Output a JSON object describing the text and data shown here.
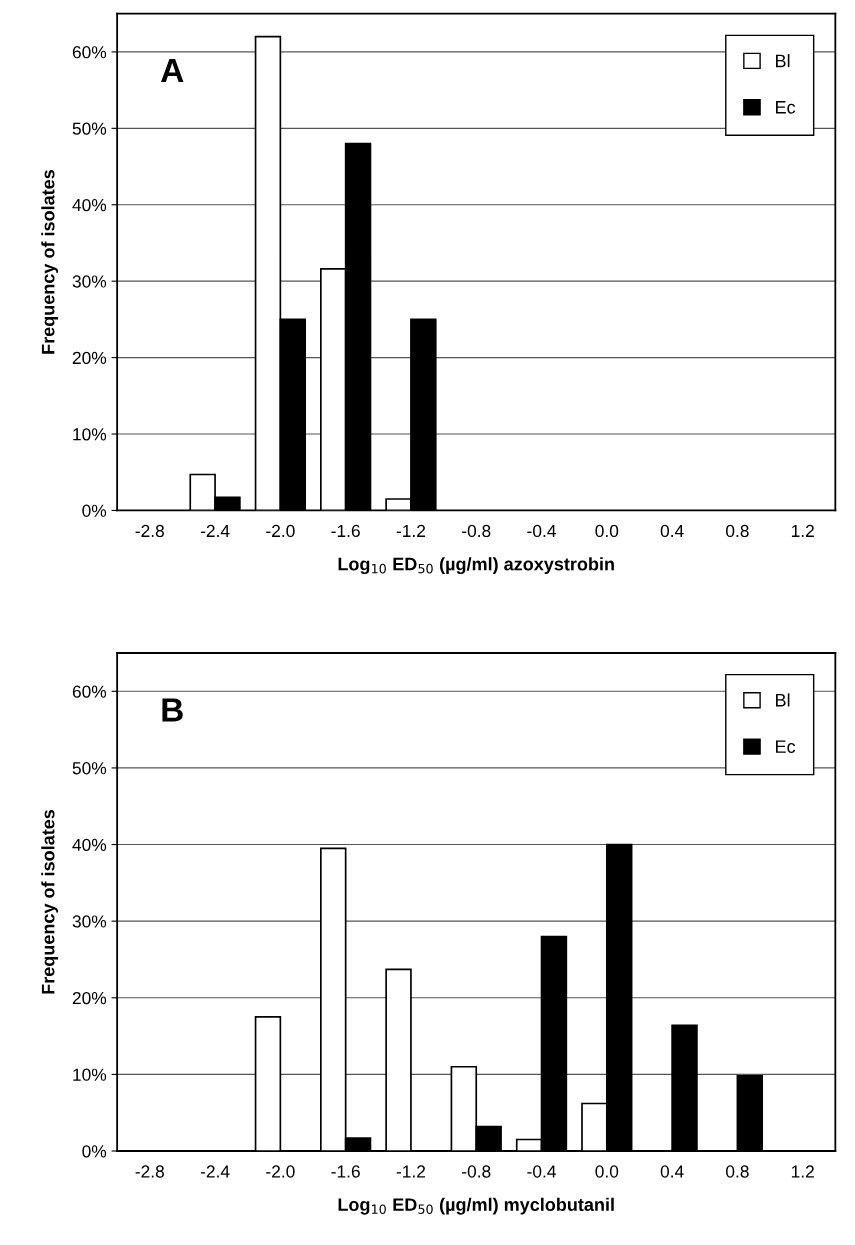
{
  "chart_data": [
    {
      "type": "bar",
      "categories": [
        "-2.8",
        "-2.4",
        "-2.0",
        "-1.6",
        "-1.2",
        "-0.8",
        "-0.4",
        "0.0",
        "0.4",
        "0.8",
        "1.2"
      ],
      "series": [
        {
          "name": "Bl",
          "color": "#ffffff",
          "values": [
            null,
            4.7,
            62,
            31.6,
            1.5,
            null,
            null,
            null,
            null,
            null,
            null
          ]
        },
        {
          "name": "Ec",
          "color": "#000000",
          "values": [
            null,
            1.7,
            25,
            48,
            25,
            null,
            null,
            null,
            null,
            null,
            null
          ]
        }
      ],
      "xlabel": "Log$_{10}$ ED$_{50}$ (µg/ml) azoxystrobin",
      "ylabel": "Frequency of isolates",
      "annotations": [
        "A"
      ],
      "ylim": [
        0,
        65
      ],
      "yticks": [
        {
          "value": 0,
          "label": "0%"
        },
        {
          "value": 10,
          "label": "10%"
        },
        {
          "value": 20,
          "label": "20%"
        },
        {
          "value": 30,
          "label": "30%"
        },
        {
          "value": 40,
          "label": "40%"
        },
        {
          "value": 50,
          "label": "50%"
        },
        {
          "value": 60,
          "label": "60%"
        }
      ],
      "grid": "y",
      "legend": "top right"
    },
    {
      "type": "bar",
      "categories": [
        "-2.8",
        "-2.4",
        "-2.0",
        "-1.6",
        "-1.2",
        "-0.8",
        "-0.4",
        "0.0",
        "0.4",
        "0.8",
        "1.2"
      ],
      "series": [
        {
          "name": "Bl",
          "color": "#ffffff",
          "values": [
            null,
            null,
            17.5,
            39.5,
            23.7,
            11,
            1.5,
            6.2,
            null,
            null,
            null
          ]
        },
        {
          "name": "Ec",
          "color": "#000000",
          "values": [
            null,
            null,
            null,
            1.7,
            null,
            3.2,
            28,
            40,
            16.4,
            9.8,
            null
          ]
        }
      ],
      "xlabel": "Log$_{10}$ ED$_{50}$ (µg/ml) myclobutanil",
      "ylabel": "Frequency of isolates",
      "annotations": [
        "B"
      ],
      "ylim": [
        0,
        65
      ],
      "yticks": [
        {
          "value": 0,
          "label": "0%"
        },
        {
          "value": 10,
          "label": "10%"
        },
        {
          "value": 20,
          "label": "20%"
        },
        {
          "value": 30,
          "label": "30%"
        },
        {
          "value": 40,
          "label": "40%"
        },
        {
          "value": 50,
          "label": "50%"
        },
        {
          "value": 60,
          "label": "60%"
        }
      ],
      "grid": "y",
      "legend": "top right"
    }
  ]
}
